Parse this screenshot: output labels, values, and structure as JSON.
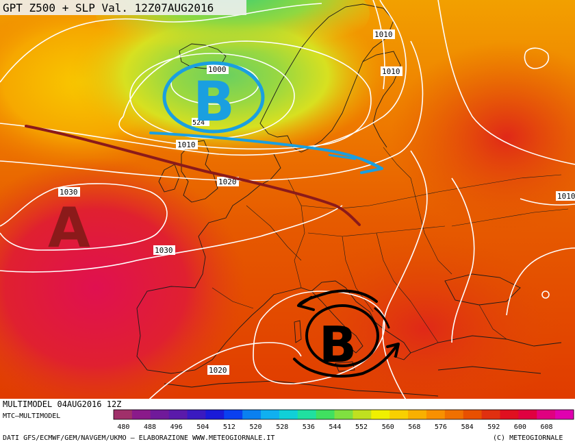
{
  "header": {
    "title": "GPT Z500 + SLP Val. 12Z07AUG2016"
  },
  "footer": {
    "model_run": "MULTIMODEL 04AUG2016 12Z",
    "model_name": "MTC—MULTIMODEL",
    "sources": "DATI GFS/ECMWF/GEM/NAVGEM/UKMO — ELABORAZIONE WWW.METEOGIORNALE.IT",
    "copyright": "(C) METEOGIORNALE"
  },
  "isobar_labels": [
    "1000",
    "1010",
    "1010",
    "1010",
    "1020",
    "1030",
    "1030",
    "1020",
    "1010"
  ],
  "small_label": "524",
  "pressure_systems": {
    "north_low": "B",
    "azores_high": "A",
    "med_low": "B"
  },
  "colors": {
    "low_blue": "#1a9fe0",
    "high_dark": "#8b1a1a",
    "med_low": "#000000"
  },
  "legend": {
    "values": [
      "480",
      "488",
      "496",
      "504",
      "512",
      "520",
      "528",
      "536",
      "544",
      "552",
      "560",
      "568",
      "576",
      "584",
      "592",
      "600",
      "608"
    ],
    "colors": [
      "#a0306a",
      "#8a1a8a",
      "#701a9a",
      "#5a1aaa",
      "#3a1ac0",
      "#1a1ad8",
      "#0a40f0",
      "#0a80f0",
      "#10b0f0",
      "#10d0d8",
      "#20e0a0",
      "#40e060",
      "#80e040",
      "#c0e020",
      "#f0f000",
      "#f8d000",
      "#f8b000",
      "#f89000",
      "#f07000",
      "#e85000",
      "#e03010",
      "#e01020",
      "#e00040",
      "#e00080",
      "#e000b0"
    ]
  }
}
